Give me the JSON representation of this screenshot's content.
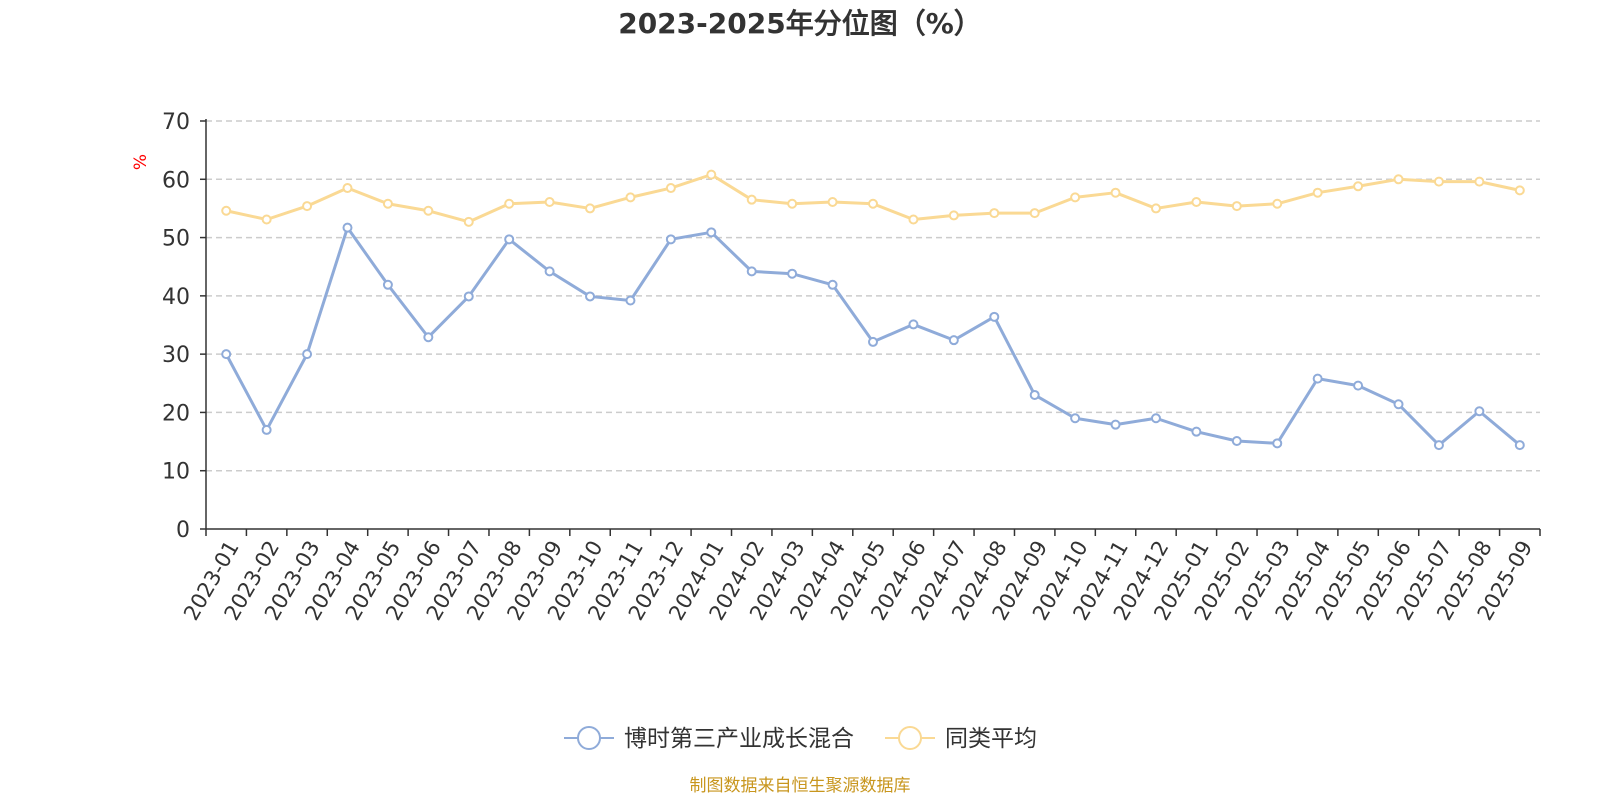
{
  "chart_data": {
    "type": "line",
    "title": "2023-2025年分位图（%）",
    "ylabel": "%",
    "xlabel": "",
    "ylim": [
      0,
      70
    ],
    "yticks": [
      0,
      10,
      20,
      30,
      40,
      50,
      60,
      70
    ],
    "grid": true,
    "legend_position": "bottom",
    "categories": [
      "2023-01",
      "2023-02",
      "2023-03",
      "2023-04",
      "2023-05",
      "2023-06",
      "2023-07",
      "2023-08",
      "2023-09",
      "2023-10",
      "2023-11",
      "2023-12",
      "2024-01",
      "2024-02",
      "2024-03",
      "2024-04",
      "2024-05",
      "2024-06",
      "2024-07",
      "2024-08",
      "2024-09",
      "2024-10",
      "2024-11",
      "2024-12",
      "2025-01",
      "2025-02",
      "2025-03",
      "2025-04",
      "2025-05",
      "2025-06",
      "2025-07",
      "2025-08",
      "2025-09"
    ],
    "series": [
      {
        "name": "博时第三产业成长混合",
        "color": "#8fabd9",
        "values": [
          30.0,
          17.0,
          30.0,
          51.7,
          41.9,
          32.9,
          39.9,
          49.7,
          44.2,
          39.9,
          39.2,
          49.7,
          50.9,
          44.2,
          43.8,
          41.9,
          32.1,
          35.1,
          32.4,
          36.4,
          23.0,
          19.0,
          17.9,
          19.0,
          16.7,
          15.1,
          14.7,
          25.8,
          24.6,
          21.4,
          14.4,
          20.2,
          14.4
        ]
      },
      {
        "name": "同类平均",
        "color": "#fad994",
        "values": [
          54.6,
          53.1,
          55.4,
          58.5,
          55.8,
          54.6,
          52.7,
          55.8,
          56.1,
          55.0,
          56.9,
          58.5,
          60.8,
          56.5,
          55.8,
          56.1,
          55.8,
          53.1,
          53.8,
          54.2,
          54.2,
          56.9,
          57.7,
          55.0,
          56.1,
          55.4,
          55.8,
          57.7,
          58.8,
          60.0,
          59.6,
          59.6,
          58.1
        ]
      }
    ]
  },
  "source": "制图数据来自恒生聚源数据库"
}
